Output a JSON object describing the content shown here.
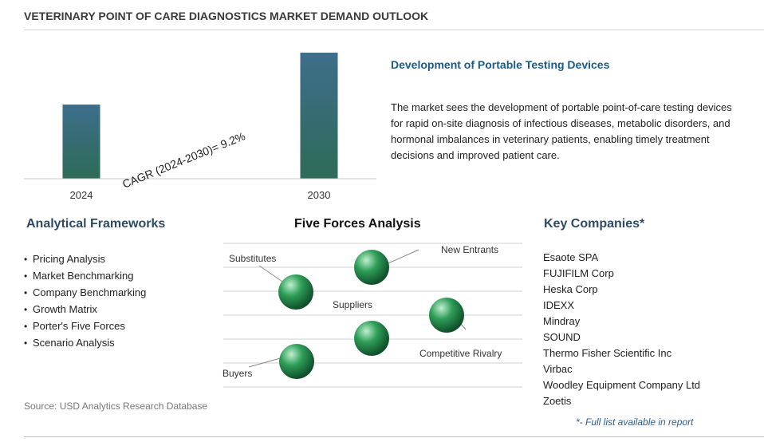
{
  "title": "VETERINARY POINT OF CARE DIAGNOSTICS MARKET DEMAND OUTLOOK",
  "chart_data": {
    "type": "bar",
    "categories": [
      "2024",
      "2030"
    ],
    "values": [
      1.0,
      1.7
    ],
    "annotation": "CAGR (2024-2030)=  9.2%",
    "bar_color_top": "#3d6e8c",
    "bar_color_bottom": "#2e6b57"
  },
  "highlight": {
    "title": "Development of Portable Testing Devices",
    "body": "The market sees the development of portable point-of-care testing devices for rapid on-site diagnosis of infectious diseases, metabolic disorders, and hormonal imbalances in veterinary patients, enabling timely treatment decisions and improved patient care."
  },
  "frameworks": {
    "heading": "Analytical Frameworks",
    "items": [
      "Pricing Analysis",
      "Market Benchmarking",
      "Company Benchmarking",
      "Growth Matrix",
      "Porter's Five Forces",
      "Scenario Analysis"
    ]
  },
  "five_forces": {
    "heading": "Five Forces Analysis",
    "labels": {
      "substitutes": "Substitutes",
      "new_entrants": "New Entrants",
      "suppliers": "Suppliers",
      "competitive_rivalry": "Competitive Rivalry",
      "buyers": "Buyers"
    },
    "sphere_color": "#2e9e58"
  },
  "companies": {
    "heading": "Key Companies*",
    "items": [
      "Esaote SPA",
      "FUJIFILM Corp",
      "Heska Corp",
      "IDEXX",
      "Mindray",
      "SOUND",
      "Thermo Fisher Scientific Inc",
      "Virbac",
      "Woodley Equipment Company Ltd",
      "Zoetis"
    ],
    "note": "*- Full list available in report"
  },
  "source": "Source: USD Analytics Research Database"
}
